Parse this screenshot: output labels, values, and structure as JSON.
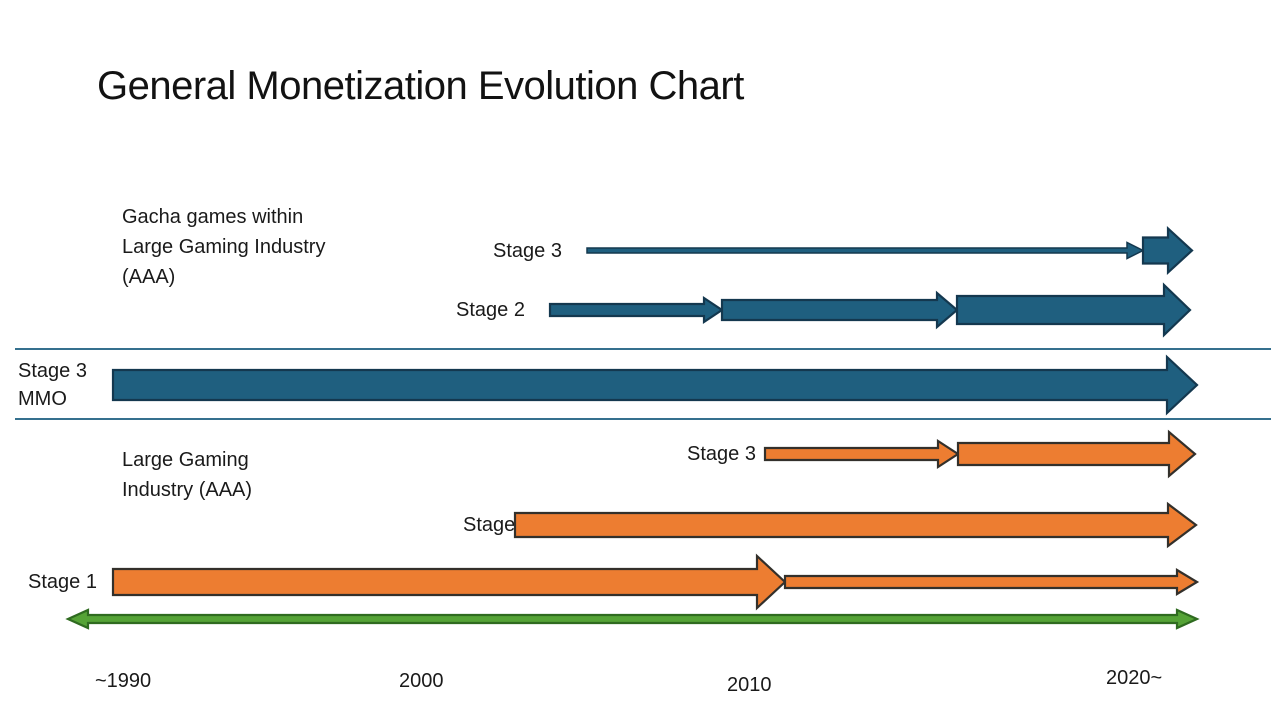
{
  "title": "General Monetization Evolution Chart",
  "colors": {
    "background": "#FFFFFF",
    "text": "#1A1A1A",
    "blue_fill": "#1F5F7F",
    "blue_stroke": "#14384F",
    "orange_fill": "#ED7D31",
    "orange_stroke": "#33302B",
    "green_fill": "#55A336",
    "green_stroke": "#2F6B20",
    "divider": "#35708E"
  },
  "chart_data": {
    "type": "timeline",
    "title": "General Monetization Evolution Chart",
    "x_axis": {
      "tick_labels": [
        "~1990",
        "2000",
        "2010",
        "2020~"
      ],
      "range": [
        "~1990",
        "2020~"
      ],
      "double_headed_axis_arrow": true,
      "axis_color": "#55A336"
    },
    "arrow_weight_encoding": "thicker arrow segment = larger scale in that period",
    "groups": [
      {
        "name": "Gacha games within Large Gaming Industry (AAA)",
        "name_lines": [
          "Gacha games within",
          "Large Gaming Industry",
          "(AAA)"
        ],
        "color": "#1F5F7F",
        "rows": [
          {
            "label": "Stage 3",
            "start": "~2005",
            "end": "2020+",
            "segments": [
              {
                "weight": "thin",
                "from": "~2005",
                "to": "~2019"
              },
              {
                "weight": "large",
                "from": "~2019",
                "to": "2020+"
              }
            ]
          },
          {
            "label": "Stage 2",
            "start": "~2004",
            "end": "2020+",
            "segments": [
              {
                "weight": "thin",
                "from": "~2004",
                "to": "~2009"
              },
              {
                "weight": "medium",
                "from": "~2009",
                "to": "~2015"
              },
              {
                "weight": "large",
                "from": "~2015",
                "to": "2020+"
              }
            ]
          }
        ]
      },
      {
        "name": "MMO",
        "name_lines": [
          "Stage 3",
          "MMO"
        ],
        "color": "#1F5F7F",
        "rows": [
          {
            "label": "Stage 3 MMO",
            "start": "~1990",
            "end": "2020+",
            "segments": [
              {
                "weight": "large",
                "from": "~1990",
                "to": "2020+"
              }
            ]
          }
        ]
      },
      {
        "name": "Large Gaming Industry (AAA)",
        "name_lines": [
          "Large Gaming",
          "Industry (AAA)"
        ],
        "color": "#ED7D31",
        "rows": [
          {
            "label": "Stage 3",
            "start": "~2010",
            "end": "2020+",
            "segments": [
              {
                "weight": "medium",
                "from": "~2010",
                "to": "~2015"
              },
              {
                "weight": "large",
                "from": "~2015",
                "to": "2020+"
              }
            ]
          },
          {
            "label": "Stage 2",
            "start": "~2003",
            "end": "2020+",
            "segments": [
              {
                "weight": "large",
                "from": "~2003",
                "to": "2020+"
              }
            ]
          },
          {
            "label": "Stage 1",
            "start": "~1990",
            "end": "2020+",
            "segments": [
              {
                "weight": "large",
                "from": "~1990",
                "to": "~2011"
              },
              {
                "weight": "thin",
                "from": "~2011",
                "to": "2020+"
              }
            ]
          }
        ]
      }
    ]
  }
}
